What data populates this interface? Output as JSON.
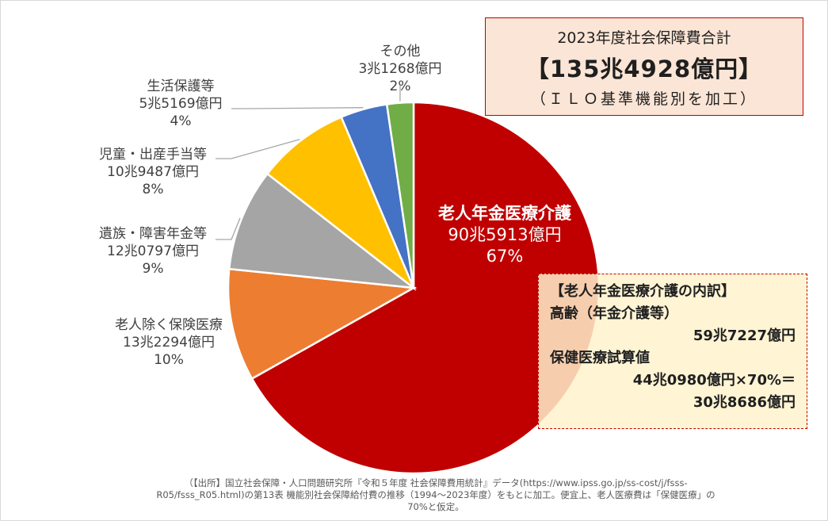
{
  "chart_data": {
    "type": "pie",
    "slices": [
      {
        "label": "老人年金医療介護",
        "amount": "90兆5913億円",
        "percent_label": "67%",
        "value": 905913,
        "color": "#c00000"
      },
      {
        "label": "老人除く保険医療",
        "amount": "13兆2294億円",
        "percent_label": "10%",
        "value": 132294,
        "color": "#ed7d31"
      },
      {
        "label": "遺族・障害年金等",
        "amount": "12兆0797億円",
        "percent_label": "9%",
        "value": 120797,
        "color": "#a5a5a5"
      },
      {
        "label": "児童・出産手当等",
        "amount": "10兆9487億円",
        "percent_label": "8%",
        "value": 109487,
        "color": "#ffc000"
      },
      {
        "label": "生活保護等",
        "amount": "5兆5169億円",
        "percent_label": "4%",
        "value": 55169,
        "color": "#4472c4"
      },
      {
        "label": "その他",
        "amount": "3兆1268億円",
        "percent_label": "2%",
        "value": 31268,
        "color": "#70ad47"
      }
    ]
  },
  "total_box": {
    "line1": "2023年度社会保障費合計",
    "line2": "【135兆4928億円】",
    "line3": "（ＩＬＯ基準機能別を加工）"
  },
  "breakdown_box": {
    "title": "【老人年金医療介護の内訳】",
    "item1_label": "高齢（年金介護等）",
    "item1_value": "59兆7227億円",
    "item2_label": "保健医療試算値",
    "item2_formula": "44兆0980億円×70%＝",
    "item2_value": "30兆8686億円"
  },
  "source": {
    "line1": "（【出所】国立社会保障・人口問題研究所『令和５年度 社会保障費用統計』データ(https://www.ipss.go.jp/ss-cost/j/fsss-",
    "line2": "R05/fsss_R05.html)の第13表 機能別社会保障給付費の推移（1994～2023年度）をもとに加工。便宜上、老人医療費は「保健医療」の",
    "line3": "70%と仮定。"
  }
}
